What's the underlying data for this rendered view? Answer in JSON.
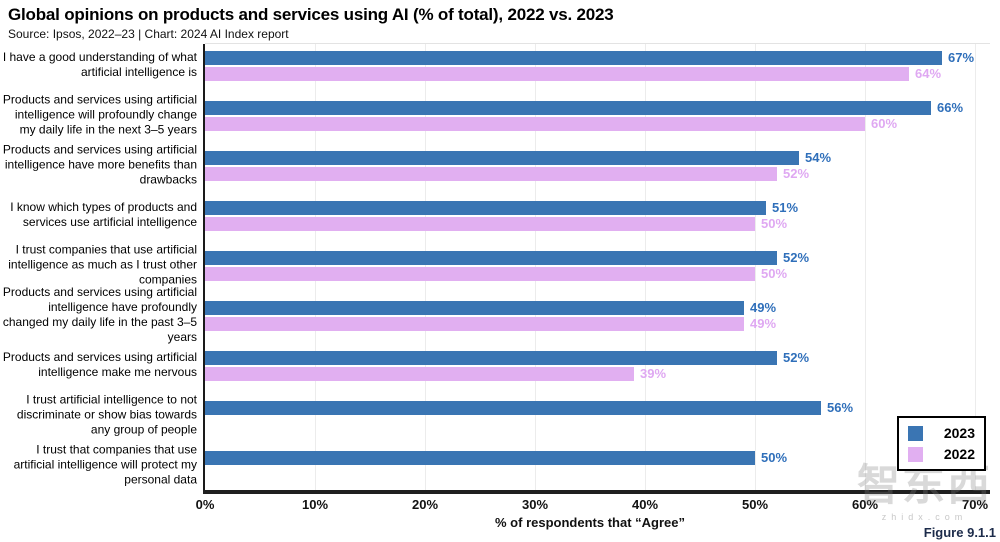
{
  "header": {
    "title": "Global opinions on products and services using AI (% of total), 2022 vs. 2023",
    "subtitle": "Source: Ipsos, 2022–23 | Chart: 2024 AI Index report"
  },
  "chart_data": {
    "type": "bar",
    "orientation": "horizontal",
    "title": "Global opinions on products and services using AI (% of total), 2022 vs. 2023",
    "xlabel": "% of respondents that “Agree”",
    "xlim": [
      0,
      70
    ],
    "x_ticks": [
      {
        "value": 0,
        "label": "0%"
      },
      {
        "value": 10,
        "label": "10%"
      },
      {
        "value": 20,
        "label": "20%"
      },
      {
        "value": 30,
        "label": "30%"
      },
      {
        "value": 40,
        "label": "40%"
      },
      {
        "value": 50,
        "label": "50%"
      },
      {
        "value": 60,
        "label": "60%"
      },
      {
        "value": 70,
        "label": "70%"
      }
    ],
    "grid": "vertical",
    "legend_position": "bottom-right",
    "categories": [
      "I have a good understanding of what artificial intelligence is",
      "Products and services using artificial intelligence will profoundly change my daily life in the next 3–5 years",
      "Products and services using artificial intelligence have more benefits than drawbacks",
      "I know which types of products and services use artificial intelligence",
      "I trust companies that use artificial intelligence as much as I trust other companies",
      "Products and services using artificial intelligence have profoundly changed my daily life in the past 3–5 years",
      "Products and services using artificial intelligence make me nervous",
      "I trust artificial intelligence to not discriminate or show bias towards any group of people",
      "I trust that companies that use artificial intelligence will protect my personal data"
    ],
    "series": [
      {
        "name": "2023",
        "color": "#3A75B3",
        "label_color": "#2F6FBA",
        "values": [
          67,
          66,
          54,
          51,
          52,
          49,
          52,
          56,
          50
        ]
      },
      {
        "name": "2022",
        "color": "#E1AFF1",
        "label_color": "#DFA8F2",
        "values": [
          64,
          60,
          52,
          50,
          50,
          49,
          39,
          null,
          null
        ]
      }
    ]
  },
  "legend": {
    "items": [
      {
        "label": "2023",
        "color": "#3A75B3"
      },
      {
        "label": "2022",
        "color": "#E1AFF1"
      }
    ]
  },
  "watermark": {
    "text": "智东西",
    "subtext": "zhidx.com"
  },
  "footer": {
    "figure_label": "Figure 9.1.1"
  }
}
